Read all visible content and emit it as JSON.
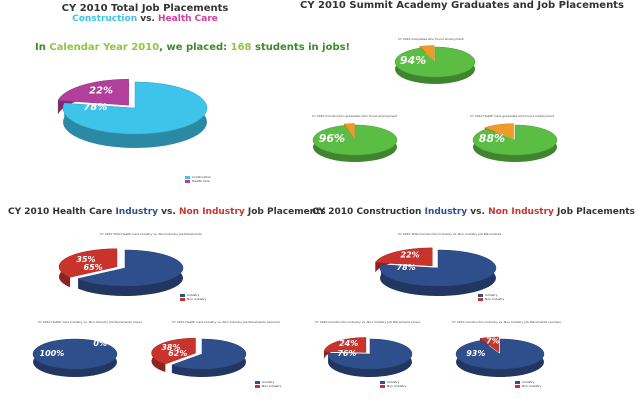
{
  "panel_total": {
    "title": "CY 2010 Total Job Placements",
    "sub_a": "Construction",
    "sub_vs": " vs. ",
    "sub_b": "Health Care",
    "callout_pre": "In ",
    "callout_year": "Calendar Year 2010",
    "callout_mid": ", we placed: ",
    "callout_num": "168",
    "callout_post": " students in jobs!"
  },
  "panel_summit": {
    "title": "CY 2010 Summit Academy Graduates and Job Placements"
  },
  "panel_hc": {
    "title_pre": "CY 2010 Health Care ",
    "title_ind": "Industry",
    "title_vs": " vs. ",
    "title_non": "Non Industry",
    "title_post": " Job Placements"
  },
  "panel_con": {
    "title_pre": "CY 2010 Construction ",
    "title_ind": "Industry",
    "title_vs": " vs. ",
    "title_non": "Non Industry",
    "title_post": " Job Placements"
  },
  "colors": {
    "cyan": "#3ec3ea",
    "magenta": "#b13f9b",
    "green": "#5cbd44",
    "orange": "#f29a28",
    "navy": "#2f4f8c",
    "red": "#c8342c",
    "title_green": "#4fae3c"
  },
  "chart_data": [
    {
      "type": "pie",
      "id": "total",
      "title": "",
      "categories": [
        "Construction",
        "Health Care"
      ],
      "values": [
        78,
        22
      ],
      "labels": [
        "78%",
        "22%"
      ],
      "legend_placement": "bottom"
    },
    {
      "type": "pie",
      "id": "grad_all",
      "title": "CY 2010 Graduates who found employment",
      "values": [
        94,
        6
      ],
      "labels": [
        "94%",
        ""
      ]
    },
    {
      "type": "pie",
      "id": "grad_con",
      "title": "CY 2010 Construction graduates who found employment",
      "values": [
        96,
        4
      ],
      "labels": [
        "96%",
        ""
      ]
    },
    {
      "type": "pie",
      "id": "grad_hc",
      "title": "CY 2010 Health Care graduates who found employment",
      "values": [
        88,
        12
      ],
      "labels": [
        "88%",
        ""
      ]
    },
    {
      "type": "pie",
      "id": "hc_total",
      "title": "CY 2010 Total Health Care Industry vs. Non Industry Job Placements",
      "categories": [
        "Industry",
        "Non Industry"
      ],
      "values": [
        65,
        35
      ],
      "labels": [
        "65%",
        "35%"
      ]
    },
    {
      "type": "pie",
      "id": "hc_men",
      "title": "CY 2010 Health Care Industry vs. Non Industry Job Placements (men)",
      "categories": [
        "Industry",
        "Non Industry"
      ],
      "values": [
        100,
        0
      ],
      "labels": [
        "100%",
        "0%"
      ]
    },
    {
      "type": "pie",
      "id": "hc_women",
      "title": "CY 2010 Health Care Industry vs. Non Industry Job Placements (women)",
      "categories": [
        "Industry",
        "Non Industry"
      ],
      "values": [
        62,
        38
      ],
      "labels": [
        "62%",
        "38%"
      ]
    },
    {
      "type": "pie",
      "id": "con_total",
      "title": "CY 2010 Total Construction Industry vs. Non Industry Job Placements",
      "categories": [
        "Industry",
        "Non Industry"
      ],
      "values": [
        78,
        22
      ],
      "labels": [
        "78%",
        "22%"
      ]
    },
    {
      "type": "pie",
      "id": "con_men",
      "title": "CY 2010 Construction Industry vs. Non Industry Job Placements (men)",
      "categories": [
        "Industry",
        "Non Industry"
      ],
      "values": [
        76,
        24
      ],
      "labels": [
        "76%",
        "24%"
      ]
    },
    {
      "type": "pie",
      "id": "con_women",
      "title": "CY 2010 Construction Industry vs. Non Industry Job Placements (women)",
      "categories": [
        "Industry",
        "Non Industry"
      ],
      "values": [
        93,
        7
      ],
      "labels": [
        "93%",
        "7%"
      ]
    }
  ]
}
